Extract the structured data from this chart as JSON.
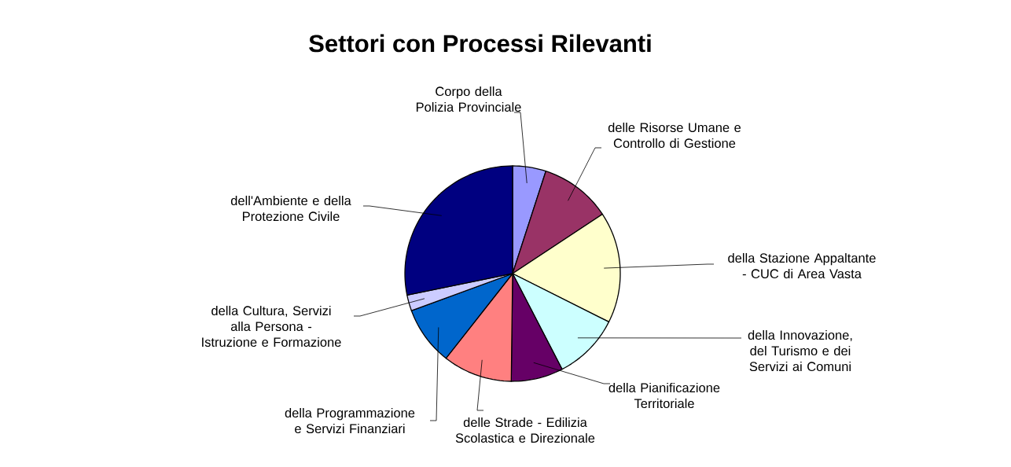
{
  "chart_data": {
    "type": "pie",
    "title": "Settori con Processi Rilevanti",
    "categories": [
      "Corpo della Polizia Provinciale",
      "delle Risorse Umane e Controllo di Gestione",
      "della Stazione Appaltante - CUC di Area Vasta",
      "della Innovazione, del Turismo e dei Servizi ai Comuni",
      "della Pianificazione Territoriale",
      "delle Strade - Edilizia Scolastica e Direzionale",
      "della Programmazione e Servizi Finanziari",
      "della Cultura, Servizi alla Persona - Istruzione e Formazione",
      "dell'Ambiente e della Protezione Civile"
    ],
    "values": [
      5,
      10.7,
      16.7,
      10,
      7.8,
      10.4,
      8.8,
      2.4,
      28.2
    ],
    "colors": [
      "#9999ff",
      "#993366",
      "#ffffcc",
      "#ccffff",
      "#660066",
      "#ff8080",
      "#0066cc",
      "#ccccff",
      "#000080"
    ],
    "legend": false
  }
}
